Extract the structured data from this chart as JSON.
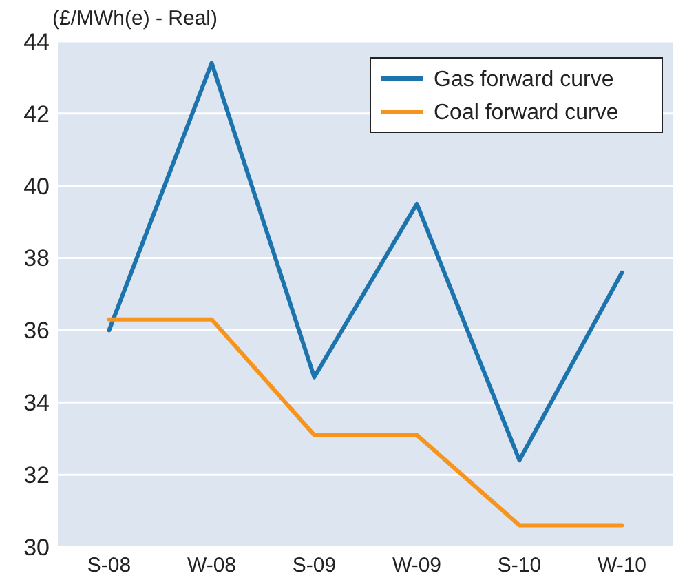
{
  "chart_data": {
    "type": "line",
    "ylabel": "(£/MWh(e) - Real)",
    "categories": [
      "S-08",
      "W-08",
      "S-09",
      "W-09",
      "S-10",
      "W-10"
    ],
    "series": [
      {
        "name": "Gas forward curve",
        "color": "#1d74ad",
        "values": [
          36.0,
          43.4,
          34.7,
          39.5,
          32.4,
          37.6
        ]
      },
      {
        "name": "Coal forward curve",
        "color": "#f7941d",
        "values": [
          36.3,
          36.3,
          33.1,
          33.1,
          30.6,
          30.6
        ]
      }
    ],
    "ylim": [
      30,
      44
    ],
    "yticks": [
      30,
      32,
      34,
      36,
      38,
      40,
      42,
      44
    ],
    "grid": "y",
    "legend": "top right",
    "marker": "none",
    "line_style": "solid"
  }
}
